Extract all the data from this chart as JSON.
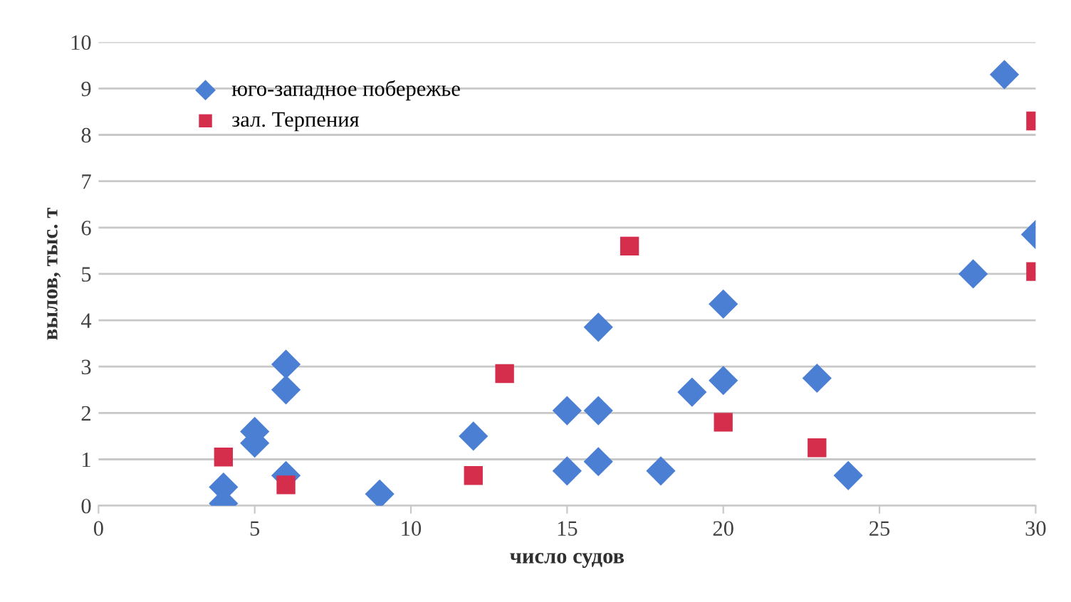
{
  "chart_data": {
    "type": "scatter",
    "xlabel": "число судов",
    "ylabel": "вылов, тыс. т",
    "xlim": [
      0,
      30
    ],
    "xticks": [
      0,
      5,
      10,
      15,
      20,
      25,
      30
    ],
    "ylim": [
      0,
      10
    ],
    "yticks": [
      0,
      1,
      2,
      3,
      4,
      5,
      6,
      7,
      8,
      9,
      10
    ],
    "grid": "y",
    "legend": "top left",
    "series": [
      {
        "name": "юго-западное побережье",
        "color": "#4a7fd4",
        "marker": "diamond",
        "x": [
          4,
          4,
          5,
          5,
          6,
          6,
          6,
          9,
          12,
          15,
          15,
          16,
          16,
          16,
          18,
          19,
          20,
          20,
          23,
          24,
          28,
          29,
          30
        ],
        "values": [
          0.05,
          0.4,
          1.35,
          1.6,
          0.65,
          2.5,
          3.05,
          0.25,
          1.5,
          0.75,
          2.05,
          0.95,
          2.05,
          3.85,
          0.75,
          2.45,
          2.7,
          4.35,
          2.75,
          0.65,
          5.0,
          9.3,
          5.85
        ]
      },
      {
        "name": "зал. Терпения",
        "color": "#d42e4c",
        "marker": "square",
        "x": [
          4,
          6,
          12,
          13,
          17,
          20,
          23,
          30,
          30
        ],
        "values": [
          1.05,
          0.45,
          0.65,
          2.85,
          5.6,
          1.8,
          1.25,
          8.3,
          5.05
        ]
      }
    ]
  }
}
